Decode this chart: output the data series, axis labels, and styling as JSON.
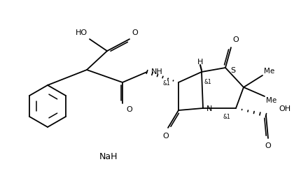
{
  "bg": "#ffffff",
  "lc": "#000000",
  "lw": 1.3,
  "fs": 8.0,
  "fig_w": 4.4,
  "fig_h": 2.65,
  "dpi": 100,
  "labels": {
    "NaH": "NaH",
    "NH": "NH",
    "S": "S",
    "N": "N",
    "O": "O",
    "HO": "HO",
    "OH": "OH",
    "H": "H",
    "and1": "&1"
  }
}
